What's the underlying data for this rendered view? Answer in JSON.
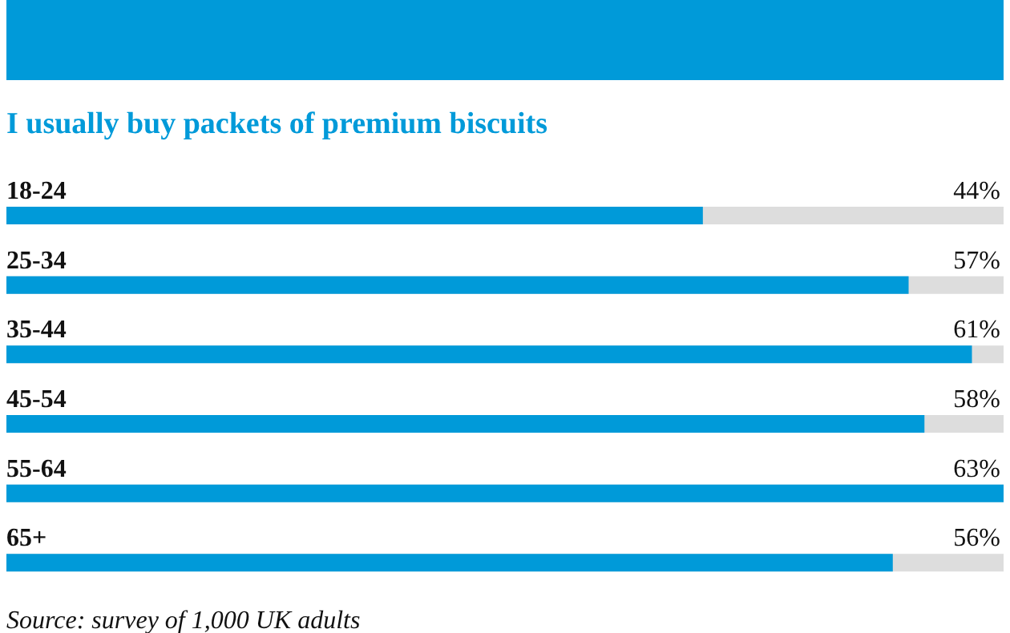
{
  "chart_data": {
    "type": "bar",
    "orientation": "horizontal",
    "title": "I usually buy packets of premium biscuits",
    "categories": [
      "18-24",
      "25-34",
      "35-44",
      "45-54",
      "55-64",
      "65+"
    ],
    "values": [
      44,
      57,
      61,
      58,
      63,
      56
    ],
    "value_labels": [
      "44%",
      "57%",
      "61%",
      "58%",
      "63%",
      "56%"
    ],
    "color": "#009ad9",
    "annotations": [
      "Source: survey of 1,000 UK adults"
    ]
  }
}
